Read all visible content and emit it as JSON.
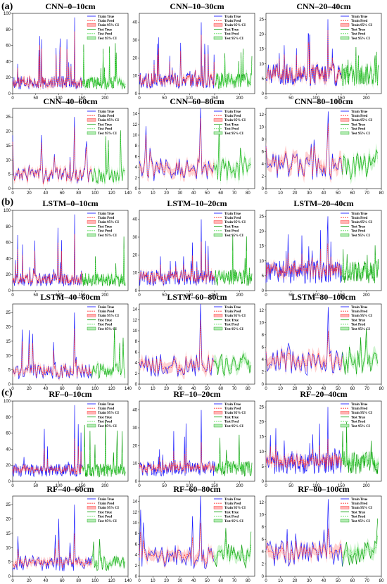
{
  "panel_labels": [
    "(a)",
    "(b)",
    "(c)"
  ],
  "legend_entries": [
    "Train True",
    "Train Pred",
    "Train 95% CI",
    "Test True",
    "Test Pred",
    "Test 95% CI"
  ],
  "colors": {
    "train_true": "#1f1fff",
    "train_pred": "#ff3333",
    "train_ci": "#ffb3b3",
    "test_true": "#10a010",
    "test_pred": "#55dd55",
    "test_ci": "#b3ecb3"
  },
  "chart_data": [
    {
      "type": "line",
      "title": "CNN–0–10cm",
      "xlim": [
        0,
        250
      ],
      "ylim": [
        0,
        100
      ],
      "xticks": [
        0,
        50,
        100,
        150,
        200
      ],
      "yticks": [
        0,
        20,
        40,
        60,
        80,
        100
      ],
      "train_n": 155,
      "test_n": 95,
      "base": 15,
      "spike": 95,
      "pred_scale": 0.8,
      "legend": "top-right"
    },
    {
      "type": "line",
      "title": "CNN–10–30cm",
      "xlim": [
        0,
        230
      ],
      "ylim": [
        0,
        45
      ],
      "xticks": [
        0,
        50,
        100,
        150,
        200
      ],
      "yticks": [
        0,
        10,
        20,
        30,
        40
      ],
      "train_n": 155,
      "test_n": 75,
      "base": 8,
      "spike": 40,
      "pred_scale": 0.75,
      "legend": "top-right"
    },
    {
      "type": "line",
      "title": "CNN–20–40cm",
      "xlim": [
        0,
        230
      ],
      "ylim": [
        0,
        27
      ],
      "xticks": [
        0,
        50,
        100,
        150,
        200
      ],
      "yticks": [
        0,
        5,
        10,
        15,
        20,
        25
      ],
      "train_n": 155,
      "test_n": 75,
      "base": 7,
      "spike": 25,
      "pred_scale": 0.75,
      "legend": "top-right"
    },
    {
      "type": "line",
      "title": "CNN–40–60cm",
      "xlim": [
        0,
        140
      ],
      "ylim": [
        0,
        28
      ],
      "xticks": [
        0,
        20,
        40,
        60,
        80,
        100,
        120,
        140
      ],
      "yticks": [
        0,
        5,
        10,
        15,
        20,
        25
      ],
      "train_n": 92,
      "test_n": 38,
      "base": 5,
      "spike": 25,
      "pred_scale": 0.85,
      "legend": "top-right"
    },
    {
      "type": "line",
      "title": "CNN–60–80cm",
      "xlim": [
        0,
        85
      ],
      "ylim": [
        0,
        15
      ],
      "xticks": [
        0,
        10,
        20,
        30,
        40,
        50,
        60,
        70,
        80
      ],
      "yticks": [
        0,
        2,
        4,
        6,
        8,
        10,
        12,
        14
      ],
      "train_n": 57,
      "test_n": 28,
      "base": 4,
      "spike": 15,
      "pred_scale": 0.8,
      "legend": "top-right"
    },
    {
      "type": "line",
      "title": "CNN–80–100cm",
      "xlim": [
        0,
        80
      ],
      "ylim": [
        0,
        13
      ],
      "xticks": [
        0,
        10,
        20,
        30,
        40,
        50,
        60,
        70,
        80
      ],
      "yticks": [
        0,
        2,
        4,
        6,
        8,
        10,
        12
      ],
      "train_n": 55,
      "test_n": 25,
      "base": 4,
      "spike": 12.5,
      "pred_scale": 0.8,
      "legend": "top-right"
    },
    {
      "type": "line",
      "title": "LSTM–0–10cm",
      "xlim": [
        0,
        250
      ],
      "ylim": [
        0,
        100
      ],
      "xticks": [
        0,
        50,
        100,
        150,
        200
      ],
      "yticks": [
        0,
        20,
        40,
        60,
        80,
        100
      ],
      "train_n": 155,
      "test_n": 95,
      "base": 15,
      "spike": 95,
      "pred_scale": 0.7,
      "legend": "top-right"
    },
    {
      "type": "line",
      "title": "LSTM–10–20cm",
      "xlim": [
        0,
        230
      ],
      "ylim": [
        0,
        45
      ],
      "xticks": [
        0,
        50,
        100,
        150,
        200
      ],
      "yticks": [
        0,
        10,
        20,
        30,
        40
      ],
      "train_n": 155,
      "test_n": 75,
      "base": 8,
      "spike": 40,
      "pred_scale": 0.6,
      "legend": "top-right"
    },
    {
      "type": "line",
      "title": "LSTM–20–40cm",
      "xlim": [
        0,
        230
      ],
      "ylim": [
        0,
        27
      ],
      "xticks": [
        0,
        50,
        100,
        150,
        200
      ],
      "yticks": [
        0,
        5,
        10,
        15,
        20,
        25
      ],
      "train_n": 155,
      "test_n": 75,
      "base": 7,
      "spike": 25,
      "pred_scale": 0.5,
      "legend": "top-right"
    },
    {
      "type": "line",
      "title": "LSTM–40–60cm",
      "xlim": [
        0,
        140
      ],
      "ylim": [
        0,
        28
      ],
      "xticks": [
        0,
        20,
        40,
        60,
        80,
        100,
        120,
        140
      ],
      "yticks": [
        0,
        5,
        10,
        15,
        20,
        25
      ],
      "train_n": 92,
      "test_n": 38,
      "base": 5,
      "spike": 25,
      "pred_scale": 0.7,
      "legend": "top-right"
    },
    {
      "type": "line",
      "title": "LSTM–60–80cm",
      "xlim": [
        0,
        85
      ],
      "ylim": [
        0,
        15
      ],
      "xticks": [
        0,
        10,
        20,
        30,
        40,
        50,
        60,
        70,
        80
      ],
      "yticks": [
        0,
        2,
        4,
        6,
        8,
        10,
        12,
        14
      ],
      "train_n": 57,
      "test_n": 28,
      "base": 4,
      "spike": 15,
      "pred_scale": 0.7,
      "legend": "top-right"
    },
    {
      "type": "line",
      "title": "LSTM–80–100cm",
      "xlim": [
        0,
        80
      ],
      "ylim": [
        0,
        13
      ],
      "xticks": [
        0,
        10,
        20,
        30,
        40,
        50,
        60,
        70,
        80
      ],
      "yticks": [
        0,
        2,
        4,
        6,
        8,
        10,
        12
      ],
      "train_n": 55,
      "test_n": 25,
      "base": 4,
      "spike": 12.5,
      "pred_scale": 0.6,
      "legend": "top-right"
    },
    {
      "type": "line",
      "title": "RF–0–10cm",
      "xlim": [
        0,
        250
      ],
      "ylim": [
        0,
        100
      ],
      "xticks": [
        0,
        50,
        100,
        150,
        200
      ],
      "yticks": [
        0,
        20,
        40,
        60,
        80,
        100
      ],
      "train_n": 155,
      "test_n": 95,
      "base": 15,
      "spike": 95,
      "pred_scale": 0.5,
      "legend": "top-right"
    },
    {
      "type": "line",
      "title": "RF–10–20cm",
      "xlim": [
        0,
        230
      ],
      "ylim": [
        0,
        45
      ],
      "xticks": [
        0,
        50,
        100,
        150,
        200
      ],
      "yticks": [
        0,
        10,
        20,
        30,
        40
      ],
      "train_n": 155,
      "test_n": 75,
      "base": 8,
      "spike": 40,
      "pred_scale": 0.45,
      "legend": "top-right"
    },
    {
      "type": "line",
      "title": "RF–20–40cm",
      "xlim": [
        0,
        230
      ],
      "ylim": [
        0,
        27
      ],
      "xticks": [
        0,
        50,
        100,
        150,
        200
      ],
      "yticks": [
        0,
        5,
        10,
        15,
        20,
        25
      ],
      "train_n": 155,
      "test_n": 75,
      "base": 7,
      "spike": 25,
      "pred_scale": 0.45,
      "legend": "top-right"
    },
    {
      "type": "line",
      "title": "RF–40–60cm",
      "xlim": [
        0,
        140
      ],
      "ylim": [
        0,
        28
      ],
      "xticks": [
        0,
        20,
        40,
        60,
        80,
        100,
        120,
        140
      ],
      "yticks": [
        0,
        5,
        10,
        15,
        20,
        25
      ],
      "train_n": 92,
      "test_n": 38,
      "base": 5,
      "spike": 25,
      "pred_scale": 0.5,
      "legend": "top-right"
    },
    {
      "type": "line",
      "title": "RF–60–80cm",
      "xlim": [
        0,
        85
      ],
      "ylim": [
        0,
        15
      ],
      "xticks": [
        0,
        10,
        20,
        30,
        40,
        50,
        60,
        70,
        80
      ],
      "yticks": [
        0,
        2,
        4,
        6,
        8,
        10,
        12,
        14
      ],
      "train_n": 57,
      "test_n": 28,
      "base": 4,
      "spike": 15,
      "pred_scale": 0.5,
      "legend": "top-right"
    },
    {
      "type": "line",
      "title": "RF–80–100cm",
      "xlim": [
        0,
        80
      ],
      "ylim": [
        0,
        13
      ],
      "xticks": [
        0,
        10,
        20,
        30,
        40,
        50,
        60,
        70,
        80
      ],
      "yticks": [
        0,
        2,
        4,
        6,
        8,
        10,
        12
      ],
      "train_n": 55,
      "test_n": 25,
      "base": 4,
      "spike": 12.5,
      "pred_scale": 0.45,
      "legend": "top-right"
    }
  ]
}
